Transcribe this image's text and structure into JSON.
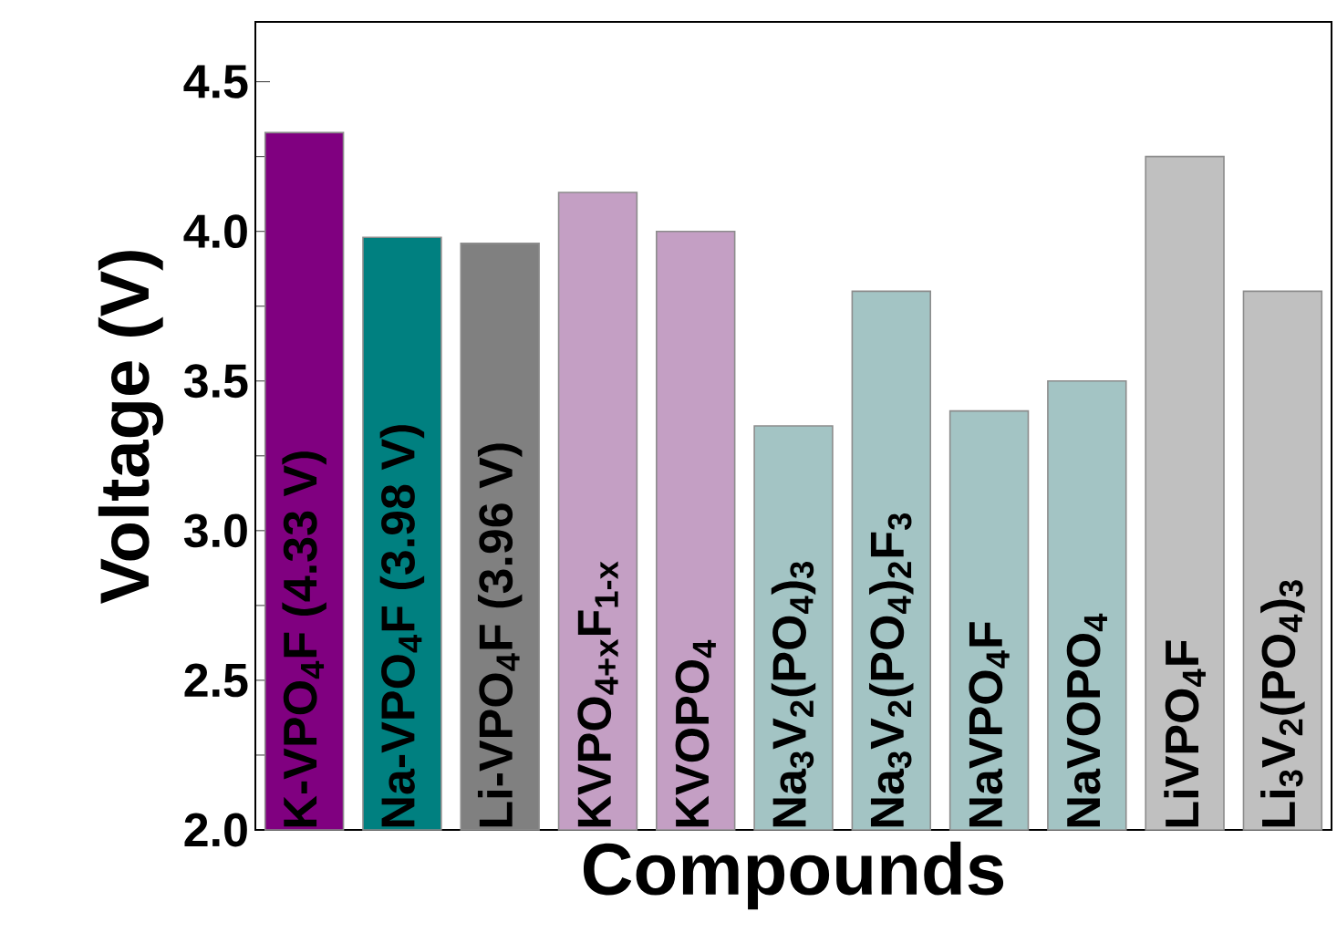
{
  "chart_data": {
    "type": "bar",
    "xlabel": "Compounds",
    "ylabel": "Voltage (V)",
    "categories": [
      "K-VPO$_{4}$F (4.33 V)",
      "Na-VPO$_{4}$F (3.98 V)",
      "Li-VPO$_{4}$F (3.96 V)",
      "KVPO$_{4+x}$F$_{1-x}$",
      "KVOPO$_{4}$",
      "Na$_{3}$V$_{2}$(PO$_{4}$)$_{3}$",
      "Na$_{3}$V$_{2}$(PO$_{4}$)$_{2}$F$_{3}$",
      "NaVPO$_{4}$F",
      "NaVOPO$_{4}$",
      "LiVPO$_{4}$F",
      "Li$_{3}$V$_{2}$(PO$_{4}$)$_{3}$"
    ],
    "values": [
      4.33,
      3.98,
      3.96,
      4.13,
      4.0,
      3.35,
      3.8,
      3.4,
      3.5,
      4.25,
      3.8
    ],
    "colors": [
      "#800080",
      "#008080",
      "#808080",
      "#c49fc4",
      "#c49fc4",
      "#a3c4c4",
      "#a3c4c4",
      "#a3c4c4",
      "#a3c4c4",
      "#c0c0c0",
      "#c0c0c0"
    ],
    "ylim": [
      2.0,
      4.7
    ],
    "yticks": [
      {
        "value": 2.0,
        "label": "2.0"
      },
      {
        "value": 2.5,
        "label": "2.5"
      },
      {
        "value": 3.0,
        "label": "3.0"
      },
      {
        "value": 3.5,
        "label": "3.5"
      },
      {
        "value": 4.0,
        "label": "4.0"
      },
      {
        "value": 4.5,
        "label": "4.5"
      }
    ],
    "grid": false
  }
}
